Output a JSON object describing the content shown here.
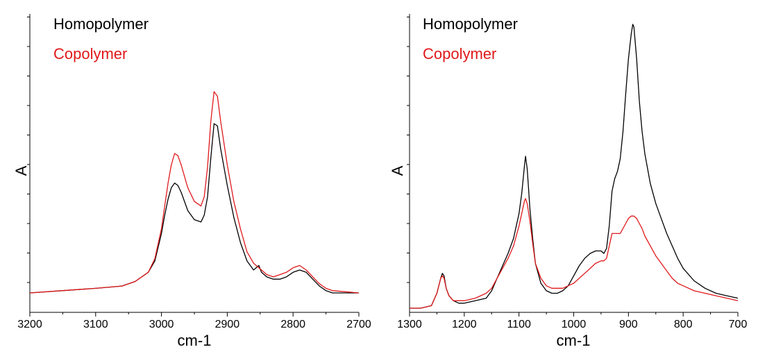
{
  "chart_data": [
    {
      "type": "line",
      "xlabel": "cm-1",
      "ylabel": "A",
      "xlim": [
        3200,
        2700
      ],
      "x_reversed": true,
      "x_ticks": [
        3200,
        3100,
        3000,
        2900,
        2800,
        2700
      ],
      "y_ticks_labeled": false,
      "grid": false,
      "legend_position": "top-left",
      "series": [
        {
          "name": "Homopolymer",
          "color": "#000000",
          "x": [
            3200,
            3150,
            3100,
            3060,
            3040,
            3020,
            3010,
            3000,
            2995,
            2990,
            2985,
            2980,
            2975,
            2970,
            2960,
            2950,
            2940,
            2935,
            2930,
            2925,
            2920,
            2915,
            2910,
            2900,
            2890,
            2880,
            2870,
            2860,
            2852,
            2848,
            2840,
            2830,
            2820,
            2810,
            2800,
            2790,
            2780,
            2770,
            2760,
            2750,
            2740,
            2700
          ],
          "values": [
            0.0,
            0.01,
            0.02,
            0.03,
            0.05,
            0.09,
            0.14,
            0.26,
            0.34,
            0.41,
            0.46,
            0.48,
            0.47,
            0.44,
            0.36,
            0.32,
            0.31,
            0.34,
            0.42,
            0.59,
            0.74,
            0.73,
            0.63,
            0.47,
            0.33,
            0.22,
            0.14,
            0.1,
            0.12,
            0.09,
            0.07,
            0.06,
            0.06,
            0.07,
            0.09,
            0.1,
            0.09,
            0.06,
            0.03,
            0.01,
            0.0,
            0.0
          ]
        },
        {
          "name": "Copolymer",
          "color": "#e0191b",
          "x": [
            3200,
            3150,
            3100,
            3060,
            3040,
            3020,
            3010,
            3000,
            2995,
            2990,
            2985,
            2980,
            2975,
            2970,
            2960,
            2950,
            2940,
            2935,
            2930,
            2925,
            2920,
            2915,
            2910,
            2900,
            2890,
            2880,
            2870,
            2860,
            2852,
            2848,
            2840,
            2830,
            2820,
            2810,
            2800,
            2790,
            2780,
            2770,
            2760,
            2750,
            2740,
            2700
          ],
          "values": [
            0.0,
            0.01,
            0.02,
            0.03,
            0.05,
            0.09,
            0.15,
            0.28,
            0.38,
            0.48,
            0.56,
            0.61,
            0.6,
            0.56,
            0.46,
            0.4,
            0.38,
            0.42,
            0.55,
            0.75,
            0.88,
            0.86,
            0.75,
            0.56,
            0.4,
            0.28,
            0.18,
            0.13,
            0.11,
            0.1,
            0.08,
            0.07,
            0.08,
            0.09,
            0.11,
            0.12,
            0.1,
            0.07,
            0.04,
            0.02,
            0.01,
            0.0
          ]
        }
      ]
    },
    {
      "type": "line",
      "xlabel": "cm-1",
      "ylabel": "A",
      "xlim": [
        1300,
        700
      ],
      "x_reversed": true,
      "x_ticks": [
        1300,
        1200,
        1100,
        1000,
        900,
        800,
        700
      ],
      "y_ticks_labeled": false,
      "grid": false,
      "legend_position": "top-left",
      "series": [
        {
          "name": "Homopolymer",
          "color": "#000000",
          "x": [
            1300,
            1280,
            1260,
            1250,
            1243,
            1240,
            1237,
            1233,
            1228,
            1220,
            1210,
            1200,
            1180,
            1160,
            1150,
            1140,
            1130,
            1120,
            1110,
            1100,
            1095,
            1090,
            1088,
            1085,
            1080,
            1075,
            1070,
            1060,
            1050,
            1040,
            1030,
            1020,
            1010,
            1000,
            990,
            980,
            970,
            960,
            950,
            945,
            940,
            935,
            930,
            925,
            920,
            915,
            910,
            905,
            900,
            895,
            892,
            890,
            885,
            880,
            875,
            870,
            860,
            850,
            840,
            830,
            820,
            810,
            800,
            780,
            760,
            740,
            720,
            700
          ],
          "values": [
            0.0,
            0.0,
            0.01,
            0.06,
            0.12,
            0.14,
            0.13,
            0.08,
            0.05,
            0.03,
            0.02,
            0.02,
            0.03,
            0.04,
            0.07,
            0.12,
            0.17,
            0.22,
            0.28,
            0.38,
            0.46,
            0.57,
            0.61,
            0.56,
            0.4,
            0.28,
            0.18,
            0.1,
            0.07,
            0.06,
            0.06,
            0.07,
            0.09,
            0.13,
            0.17,
            0.2,
            0.22,
            0.23,
            0.23,
            0.22,
            0.24,
            0.33,
            0.47,
            0.52,
            0.55,
            0.6,
            0.71,
            0.86,
            1.0,
            1.1,
            1.14,
            1.13,
            1.0,
            0.83,
            0.71,
            0.62,
            0.5,
            0.42,
            0.36,
            0.3,
            0.25,
            0.2,
            0.16,
            0.11,
            0.08,
            0.06,
            0.05,
            0.04
          ]
        },
        {
          "name": "Copolymer",
          "color": "#e0191b",
          "x": [
            1300,
            1280,
            1260,
            1250,
            1243,
            1240,
            1237,
            1233,
            1228,
            1220,
            1210,
            1200,
            1180,
            1160,
            1150,
            1140,
            1130,
            1120,
            1110,
            1100,
            1095,
            1090,
            1088,
            1085,
            1080,
            1075,
            1070,
            1060,
            1050,
            1040,
            1030,
            1020,
            1010,
            1000,
            990,
            980,
            970,
            960,
            950,
            945,
            940,
            935,
            930,
            925,
            920,
            915,
            910,
            905,
            900,
            895,
            892,
            890,
            885,
            880,
            875,
            870,
            860,
            850,
            840,
            830,
            820,
            810,
            800,
            780,
            760,
            740,
            720,
            700
          ],
          "values": [
            0.0,
            0.0,
            0.01,
            0.06,
            0.12,
            0.13,
            0.12,
            0.08,
            0.05,
            0.03,
            0.03,
            0.03,
            0.04,
            0.06,
            0.08,
            0.12,
            0.16,
            0.2,
            0.25,
            0.33,
            0.38,
            0.43,
            0.44,
            0.42,
            0.35,
            0.26,
            0.18,
            0.12,
            0.09,
            0.08,
            0.08,
            0.08,
            0.09,
            0.1,
            0.12,
            0.14,
            0.16,
            0.18,
            0.19,
            0.19,
            0.2,
            0.25,
            0.3,
            0.3,
            0.3,
            0.3,
            0.32,
            0.34,
            0.36,
            0.37,
            0.37,
            0.37,
            0.36,
            0.34,
            0.32,
            0.29,
            0.25,
            0.21,
            0.18,
            0.15,
            0.12,
            0.1,
            0.09,
            0.07,
            0.06,
            0.05,
            0.04,
            0.03
          ]
        }
      ]
    }
  ]
}
